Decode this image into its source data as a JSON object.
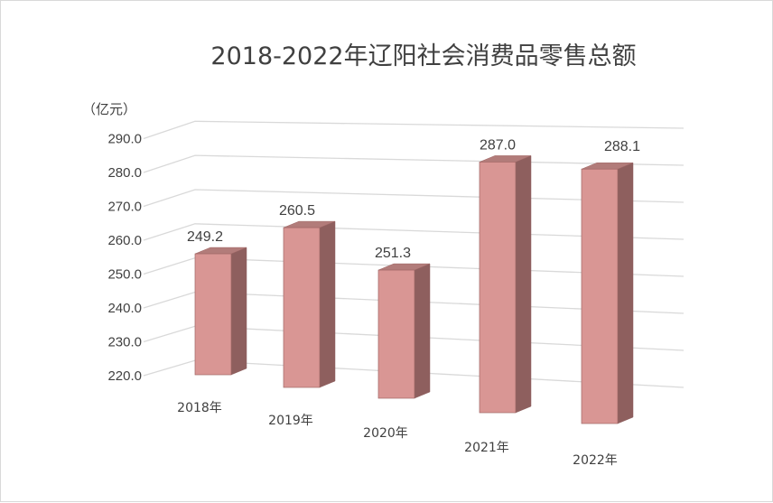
{
  "chart_data": {
    "type": "bar",
    "title": "2018-2022年辽阳社会消费品零售总额",
    "unit_label": "（亿元）",
    "categories": [
      "2018年",
      "2019年",
      "2020年",
      "2021年",
      "2022年"
    ],
    "values": [
      249.2,
      260.5,
      251.3,
      287.0,
      288.1
    ],
    "value_labels": [
      "249.2",
      "260.5",
      "251.3",
      "287.0",
      "288.1"
    ],
    "ylim": [
      220,
      290
    ],
    "yticks": [
      "220.0",
      "230.0",
      "240.0",
      "250.0",
      "260.0",
      "270.0",
      "280.0",
      "290.0"
    ],
    "grid": true,
    "legend": "none",
    "colors": {
      "bar_front": "#d99694",
      "bar_side": "#8e5f5e",
      "bar_top": "#b27c7a",
      "bar_edge": "#a06766",
      "grid": "#d9d9d9",
      "text": "#404040"
    }
  }
}
